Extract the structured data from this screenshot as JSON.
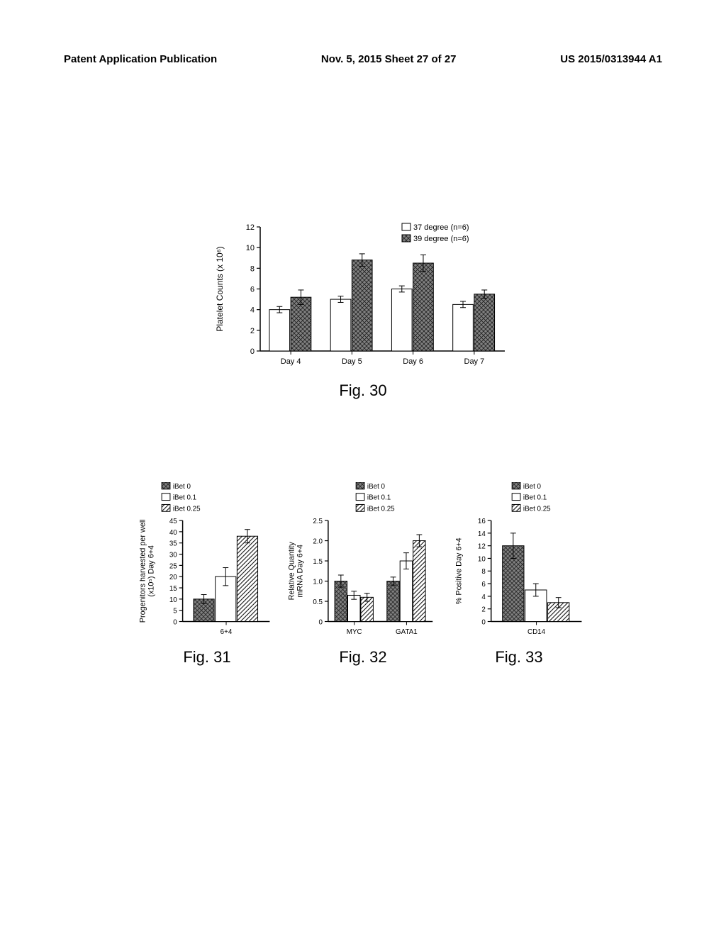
{
  "header": {
    "left": "Patent Application Publication",
    "center": "Nov. 5, 2015  Sheet 27 of 27",
    "right": "US 2015/0313944 A1"
  },
  "fig30": {
    "type": "bar",
    "label": "Fig. 30",
    "ylabel": "Platelet Counts (x 10⁶)",
    "ylim": [
      0,
      12
    ],
    "ytick_step": 2,
    "categories": [
      "Day 4",
      "Day 5",
      "Day 6",
      "Day 7"
    ],
    "legend": [
      {
        "label": "37 degree (n=6)",
        "fill": "#ffffff",
        "pattern": "none"
      },
      {
        "label": "39 degree (n=6)",
        "fill": "#606060",
        "pattern": "crosshatch"
      }
    ],
    "series": [
      {
        "vals": [
          4.0,
          5.0,
          6.0,
          4.5
        ],
        "err": [
          0.3,
          0.3,
          0.3,
          0.3
        ],
        "fill": "#ffffff",
        "pattern": "none"
      },
      {
        "vals": [
          5.2,
          8.8,
          8.5,
          5.5
        ],
        "err": [
          0.7,
          0.6,
          0.8,
          0.4
        ],
        "fill": "#606060",
        "pattern": "crosshatch"
      }
    ],
    "bar_width": 0.35,
    "axis_fontsize": 11,
    "label_fontsize": 12,
    "colors": {
      "axis": "#000000",
      "bg": "#ffffff"
    }
  },
  "fig31": {
    "type": "bar",
    "label": "Fig. 31",
    "ylabel": "Progenitors harvested per well\n(x10⁵) Day 6+4",
    "ylim": [
      0,
      45
    ],
    "ytick_step": 5,
    "categories": [
      "6+4"
    ],
    "legend": [
      {
        "label": "iBet 0",
        "fill": "#606060",
        "pattern": "crosshatch"
      },
      {
        "label": "iBet 0.1",
        "fill": "#ffffff",
        "pattern": "none"
      },
      {
        "label": "iBet 0.25",
        "fill": "#ffffff",
        "pattern": "diag"
      }
    ],
    "series": [
      {
        "vals": [
          10
        ],
        "err": [
          2
        ],
        "fill": "#606060",
        "pattern": "crosshatch"
      },
      {
        "vals": [
          20
        ],
        "err": [
          4
        ],
        "fill": "#ffffff",
        "pattern": "none"
      },
      {
        "vals": [
          38
        ],
        "err": [
          3
        ],
        "fill": "#ffffff",
        "pattern": "diag"
      }
    ],
    "bar_width": 0.25,
    "axis_fontsize": 10,
    "label_fontsize": 11
  },
  "fig32": {
    "type": "bar",
    "label": "Fig. 32",
    "ylabel": "Relative Quantity\nmRNA Day 6+4",
    "ylim": [
      0,
      2.5
    ],
    "ytick_step": 0.5,
    "categories": [
      "MYC",
      "GATA1"
    ],
    "legend": [
      {
        "label": "iBet 0",
        "fill": "#606060",
        "pattern": "crosshatch"
      },
      {
        "label": "iBet 0.1",
        "fill": "#ffffff",
        "pattern": "none"
      },
      {
        "label": "iBet 0.25",
        "fill": "#ffffff",
        "pattern": "diag"
      }
    ],
    "series": [
      {
        "vals": [
          1.0,
          1.0
        ],
        "err": [
          0.15,
          0.1
        ],
        "fill": "#606060",
        "pattern": "crosshatch"
      },
      {
        "vals": [
          0.65,
          1.5
        ],
        "err": [
          0.1,
          0.2
        ],
        "fill": "#ffffff",
        "pattern": "none"
      },
      {
        "vals": [
          0.6,
          2.0
        ],
        "err": [
          0.1,
          0.15
        ],
        "fill": "#ffffff",
        "pattern": "diag"
      }
    ],
    "bar_width": 0.25,
    "axis_fontsize": 10,
    "label_fontsize": 11
  },
  "fig33": {
    "type": "bar",
    "label": "Fig. 33",
    "ylabel": "% Positive Day 6+4",
    "ylim": [
      0,
      16
    ],
    "ytick_step": 2,
    "categories": [
      "CD14"
    ],
    "legend": [
      {
        "label": "iBet 0",
        "fill": "#606060",
        "pattern": "crosshatch"
      },
      {
        "label": "iBet 0.1",
        "fill": "#ffffff",
        "pattern": "none"
      },
      {
        "label": "iBet 0.25",
        "fill": "#ffffff",
        "pattern": "diag"
      }
    ],
    "series": [
      {
        "vals": [
          12
        ],
        "err": [
          2
        ],
        "fill": "#606060",
        "pattern": "crosshatch"
      },
      {
        "vals": [
          5
        ],
        "err": [
          1
        ],
        "fill": "#ffffff",
        "pattern": "none"
      },
      {
        "vals": [
          3
        ],
        "err": [
          0.8
        ],
        "fill": "#ffffff",
        "pattern": "diag"
      }
    ],
    "bar_width": 0.25,
    "axis_fontsize": 10,
    "label_fontsize": 11
  }
}
